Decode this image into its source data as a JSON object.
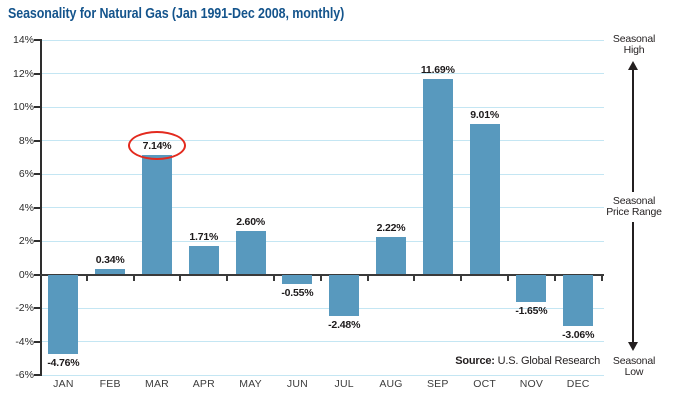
{
  "title": "Seasonality for Natural Gas (Jan 1991-Dec 2008, monthly)",
  "source": {
    "label": "Source:",
    "text": "U.S. Global Research"
  },
  "annotations": {
    "seasonal_high": "Seasonal\nHigh",
    "seasonal_price_range": "Seasonal\nPrice Range",
    "seasonal_low": "Seasonal\nLow"
  },
  "chart_data": {
    "type": "bar",
    "title": "Seasonality for Natural Gas (Jan 1991-Dec 2008, monthly)",
    "categories": [
      "JAN",
      "FEB",
      "MAR",
      "APR",
      "MAY",
      "JUN",
      "JUL",
      "AUG",
      "SEP",
      "OCT",
      "NOV",
      "DEC"
    ],
    "values": [
      -4.76,
      0.34,
      7.14,
      1.71,
      2.6,
      -0.55,
      -2.48,
      2.22,
      11.69,
      9.01,
      -1.65,
      -3.06
    ],
    "value_labels": [
      "-4.76%",
      "0.34%",
      "7.14%",
      "1.71%",
      "2.60%",
      "-0.55%",
      "-2.48%",
      "2.22%",
      "11.69%",
      "9.01%",
      "-1.65%",
      "-3.06%"
    ],
    "xlabel": "",
    "ylabel": "",
    "ylim": [
      -6,
      14
    ],
    "ytick_values": [
      14,
      12,
      10,
      8,
      6,
      4,
      2,
      0,
      -2,
      -4,
      -6
    ],
    "ytick_labels": [
      "14%",
      "12%",
      "10%",
      "8%",
      "6%",
      "4%",
      "2%",
      "0%",
      "-2%",
      "-4%",
      "-6%"
    ],
    "grid": true,
    "legend": "none",
    "highlight": {
      "month": "MAR",
      "label": "7.14%",
      "color": "#E32A1E"
    },
    "colors": {
      "bar": "#5899BE",
      "gridline": "#C4E6F3",
      "axis": "#2e2e2e",
      "title": "#14548C",
      "text": "#231f20"
    }
  }
}
